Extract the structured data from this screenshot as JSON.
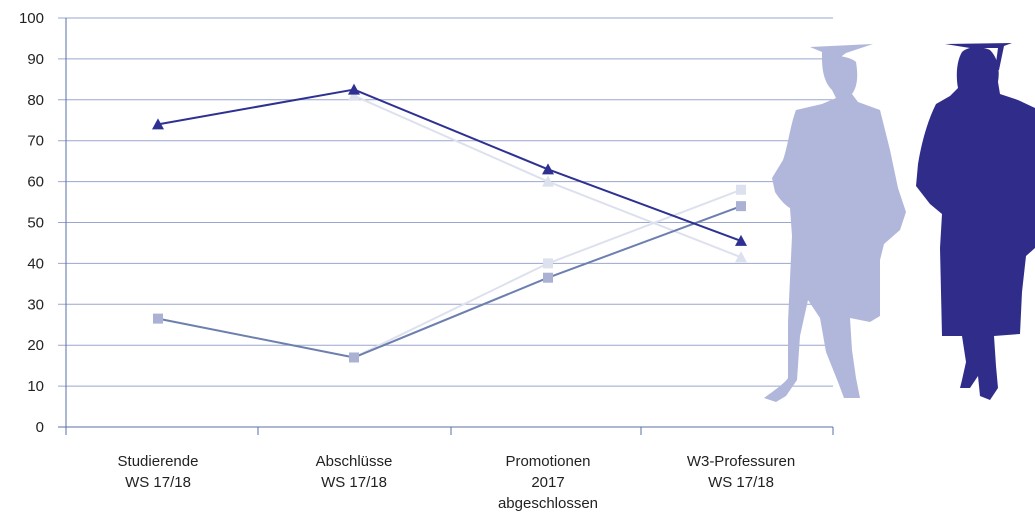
{
  "chart_data": {
    "type": "line",
    "title": "",
    "xlabel": "",
    "ylabel": "",
    "ylim": [
      0,
      100
    ],
    "yticks": [
      0,
      10,
      20,
      30,
      40,
      50,
      60,
      70,
      80,
      90,
      100
    ],
    "grid": true,
    "categories": [
      [
        "Studierende",
        "WS 17/18"
      ],
      [
        "Abschlüsse",
        "WS 17/18"
      ],
      [
        "Promotionen",
        "2017",
        "abgeschlossen"
      ],
      [
        "W3-Professuren",
        "WS 17/18"
      ]
    ],
    "series": [
      {
        "marker": "triangle",
        "color": "#2e3191",
        "values": [
          74,
          82.5,
          63,
          45.5
        ]
      },
      {
        "marker": "triangle",
        "color": "#dde1ee",
        "values": [
          null,
          81,
          60,
          41.5
        ]
      },
      {
        "marker": "square",
        "color": "#dde1ee",
        "values": [
          null,
          17,
          40,
          58
        ]
      },
      {
        "marker": "square",
        "color": "#6c7fae",
        "markerColor": "#aab1d3",
        "values": [
          26.5,
          17,
          36.5,
          54
        ]
      }
    ],
    "colors": {
      "grid": "#9aa6cf",
      "axis": "#5a6fa6",
      "male_figure": "#b1b7da",
      "female_figure": "#302d8a"
    }
  }
}
